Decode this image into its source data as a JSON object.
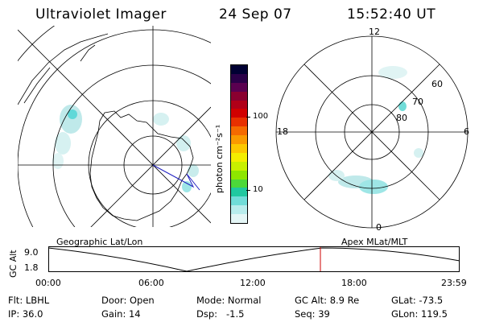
{
  "header": {
    "instrument": "Ultraviolet Imager",
    "date": "24 Sep 07",
    "time": "15:52:40 UT"
  },
  "colorbar": {
    "unit_label": "photon cm⁻²s⁻¹",
    "ticks": [
      "100",
      "10"
    ],
    "colors": [
      "#000033",
      "#2a0048",
      "#5a0050",
      "#8a0030",
      "#b00018",
      "#d00000",
      "#e83000",
      "#f56a00",
      "#fa9a00",
      "#fcc800",
      "#f4ee00",
      "#c8f000",
      "#8ee600",
      "#4cd83a",
      "#20c8a0",
      "#70dcd8",
      "#b8ecec",
      "#e4f6f6"
    ]
  },
  "left_panel": {
    "label": "Geographic Lat/Lon"
  },
  "right_panel": {
    "label": "Apex MLat/MLT",
    "mlt_labels": {
      "top": "12",
      "bottom": "0",
      "left": "18",
      "right": "6"
    },
    "lat_labels": [
      "60",
      "70",
      "80"
    ]
  },
  "timeline": {
    "ylabel": "GC Alt",
    "y_ticks": [
      "9.0",
      "1.8"
    ],
    "x_ticks": [
      "00:00",
      "06:00",
      "12:00",
      "18:00",
      "23:59"
    ],
    "marker_color": "#cc0000"
  },
  "footer": {
    "filter": "Flt: LBHL",
    "ip": "IP: 36.0",
    "door": "Door: Open",
    "gain": "Gain: 14",
    "mode": "Mode: Normal",
    "dsp": "Dsp:   -1.5",
    "gc_alt": "GC Alt: 8.9 Re",
    "seq": "Seq: 39",
    "glat": "GLat: -73.5",
    "glon": "GLon: 119.5"
  }
}
